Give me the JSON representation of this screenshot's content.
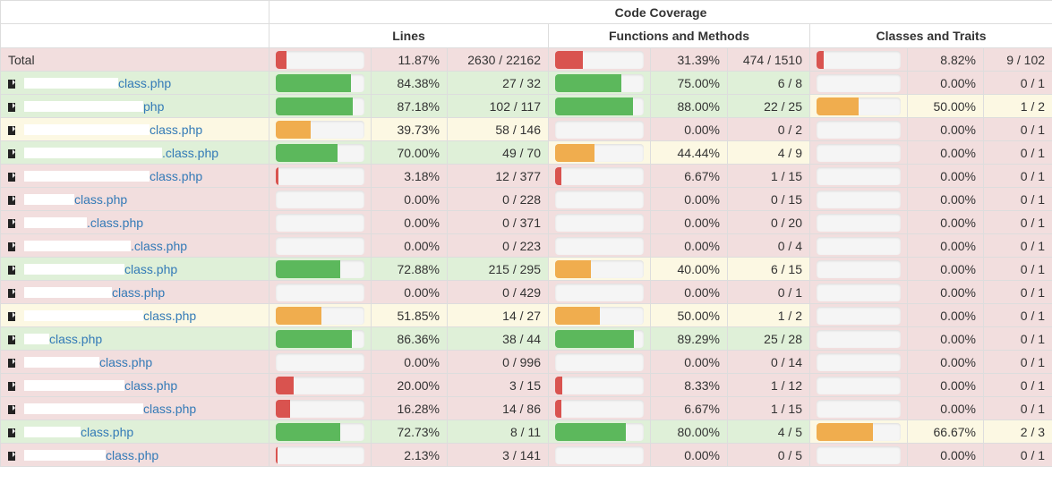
{
  "header": {
    "coverage": "Code Coverage",
    "lines": "Lines",
    "functions": "Functions and Methods",
    "classes": "Classes and Traits"
  },
  "total": {
    "name": "Total",
    "lines": {
      "pct": 11.87,
      "pct_text": "11.87%",
      "count": "2630 / 22162",
      "level": "danger"
    },
    "functions": {
      "pct": 31.39,
      "pct_text": "31.39%",
      "count": "474 / 1510",
      "level": "danger"
    },
    "classes": {
      "pct": 8.82,
      "pct_text": "8.82%",
      "count": "9 / 102",
      "level": "danger"
    }
  },
  "rows": [
    {
      "name": "class.php",
      "redacted_chars": 15,
      "lines": {
        "pct": 84.38,
        "pct_text": "84.38%",
        "count": "27 / 32",
        "level": "success"
      },
      "functions": {
        "pct": 75.0,
        "pct_text": "75.00%",
        "count": "6 / 8",
        "level": "success"
      },
      "classes": {
        "pct": 0,
        "pct_text": "0.00%",
        "count": "0 / 1",
        "level": "danger"
      }
    },
    {
      "name": "php",
      "redacted_chars": 19,
      "lines": {
        "pct": 87.18,
        "pct_text": "87.18%",
        "count": "102 / 117",
        "level": "success"
      },
      "functions": {
        "pct": 88.0,
        "pct_text": "88.00%",
        "count": "22 / 25",
        "level": "success"
      },
      "classes": {
        "pct": 50.0,
        "pct_text": "50.00%",
        "count": "1 / 2",
        "level": "warning"
      }
    },
    {
      "name": "class.php",
      "redacted_chars": 20,
      "lines": {
        "pct": 39.73,
        "pct_text": "39.73%",
        "count": "58 / 146",
        "level": "warning"
      },
      "functions": {
        "pct": 0,
        "pct_text": "0.00%",
        "count": "0 / 2",
        "level": "danger"
      },
      "classes": {
        "pct": 0,
        "pct_text": "0.00%",
        "count": "0 / 1",
        "level": "danger"
      }
    },
    {
      "name": ".class.php",
      "redacted_chars": 22,
      "lines": {
        "pct": 70.0,
        "pct_text": "70.00%",
        "count": "49 / 70",
        "level": "success"
      },
      "functions": {
        "pct": 44.44,
        "pct_text": "44.44%",
        "count": "4 / 9",
        "level": "warning"
      },
      "classes": {
        "pct": 0,
        "pct_text": "0.00%",
        "count": "0 / 1",
        "level": "danger"
      }
    },
    {
      "name": "class.php",
      "redacted_chars": 20,
      "lines": {
        "pct": 3.18,
        "pct_text": "3.18%",
        "count": "12 / 377",
        "level": "danger"
      },
      "functions": {
        "pct": 6.67,
        "pct_text": "6.67%",
        "count": "1 / 15",
        "level": "danger"
      },
      "classes": {
        "pct": 0,
        "pct_text": "0.00%",
        "count": "0 / 1",
        "level": "danger"
      }
    },
    {
      "name": "class.php",
      "redacted_chars": 8,
      "lines": {
        "pct": 0,
        "pct_text": "0.00%",
        "count": "0 / 228",
        "level": "danger"
      },
      "functions": {
        "pct": 0,
        "pct_text": "0.00%",
        "count": "0 / 15",
        "level": "danger"
      },
      "classes": {
        "pct": 0,
        "pct_text": "0.00%",
        "count": "0 / 1",
        "level": "danger"
      }
    },
    {
      "name": ".class.php",
      "redacted_chars": 10,
      "lines": {
        "pct": 0,
        "pct_text": "0.00%",
        "count": "0 / 371",
        "level": "danger"
      },
      "functions": {
        "pct": 0,
        "pct_text": "0.00%",
        "count": "0 / 20",
        "level": "danger"
      },
      "classes": {
        "pct": 0,
        "pct_text": "0.00%",
        "count": "0 / 1",
        "level": "danger"
      }
    },
    {
      "name": ".class.php",
      "redacted_chars": 17,
      "lines": {
        "pct": 0,
        "pct_text": "0.00%",
        "count": "0 / 223",
        "level": "danger"
      },
      "functions": {
        "pct": 0,
        "pct_text": "0.00%",
        "count": "0 / 4",
        "level": "danger"
      },
      "classes": {
        "pct": 0,
        "pct_text": "0.00%",
        "count": "0 / 1",
        "level": "danger"
      }
    },
    {
      "name": "class.php",
      "redacted_chars": 16,
      "lines": {
        "pct": 72.88,
        "pct_text": "72.88%",
        "count": "215 / 295",
        "level": "success"
      },
      "functions": {
        "pct": 40.0,
        "pct_text": "40.00%",
        "count": "6 / 15",
        "level": "warning"
      },
      "classes": {
        "pct": 0,
        "pct_text": "0.00%",
        "count": "0 / 1",
        "level": "danger"
      }
    },
    {
      "name": "class.php",
      "redacted_chars": 14,
      "lines": {
        "pct": 0,
        "pct_text": "0.00%",
        "count": "0 / 429",
        "level": "danger"
      },
      "functions": {
        "pct": 0,
        "pct_text": "0.00%",
        "count": "0 / 1",
        "level": "danger"
      },
      "classes": {
        "pct": 0,
        "pct_text": "0.00%",
        "count": "0 / 1",
        "level": "danger"
      }
    },
    {
      "name": "class.php",
      "redacted_chars": 19,
      "lines": {
        "pct": 51.85,
        "pct_text": "51.85%",
        "count": "14 / 27",
        "level": "warning"
      },
      "functions": {
        "pct": 50.0,
        "pct_text": "50.00%",
        "count": "1 / 2",
        "level": "warning"
      },
      "classes": {
        "pct": 0,
        "pct_text": "0.00%",
        "count": "0 / 1",
        "level": "danger"
      }
    },
    {
      "name": "class.php",
      "redacted_chars": 4,
      "lines": {
        "pct": 86.36,
        "pct_text": "86.36%",
        "count": "38 / 44",
        "level": "success"
      },
      "functions": {
        "pct": 89.29,
        "pct_text": "89.29%",
        "count": "25 / 28",
        "level": "success"
      },
      "classes": {
        "pct": 0,
        "pct_text": "0.00%",
        "count": "0 / 1",
        "level": "danger"
      }
    },
    {
      "name": "class.php",
      "redacted_chars": 12,
      "lines": {
        "pct": 0,
        "pct_text": "0.00%",
        "count": "0 / 996",
        "level": "danger"
      },
      "functions": {
        "pct": 0,
        "pct_text": "0.00%",
        "count": "0 / 14",
        "level": "danger"
      },
      "classes": {
        "pct": 0,
        "pct_text": "0.00%",
        "count": "0 / 1",
        "level": "danger"
      }
    },
    {
      "name": "class.php",
      "redacted_chars": 16,
      "lines": {
        "pct": 20.0,
        "pct_text": "20.00%",
        "count": "3 / 15",
        "level": "danger"
      },
      "functions": {
        "pct": 8.33,
        "pct_text": "8.33%",
        "count": "1 / 12",
        "level": "danger"
      },
      "classes": {
        "pct": 0,
        "pct_text": "0.00%",
        "count": "0 / 1",
        "level": "danger"
      }
    },
    {
      "name": "class.php",
      "redacted_chars": 19,
      "lines": {
        "pct": 16.28,
        "pct_text": "16.28%",
        "count": "14 / 86",
        "level": "danger"
      },
      "functions": {
        "pct": 6.67,
        "pct_text": "6.67%",
        "count": "1 / 15",
        "level": "danger"
      },
      "classes": {
        "pct": 0,
        "pct_text": "0.00%",
        "count": "0 / 1",
        "level": "danger"
      }
    },
    {
      "name": "class.php",
      "redacted_chars": 9,
      "lines": {
        "pct": 72.73,
        "pct_text": "72.73%",
        "count": "8 / 11",
        "level": "success"
      },
      "functions": {
        "pct": 80.0,
        "pct_text": "80.00%",
        "count": "4 / 5",
        "level": "success"
      },
      "classes": {
        "pct": 66.67,
        "pct_text": "66.67%",
        "count": "2 / 3",
        "level": "warning"
      }
    },
    {
      "name": "class.php",
      "redacted_chars": 13,
      "lines": {
        "pct": 2.13,
        "pct_text": "2.13%",
        "count": "3 / 141",
        "level": "danger"
      },
      "functions": {
        "pct": 0,
        "pct_text": "0.00%",
        "count": "0 / 5",
        "level": "danger"
      },
      "classes": {
        "pct": 0,
        "pct_text": "0.00%",
        "count": "0 / 1",
        "level": "danger"
      }
    }
  ]
}
